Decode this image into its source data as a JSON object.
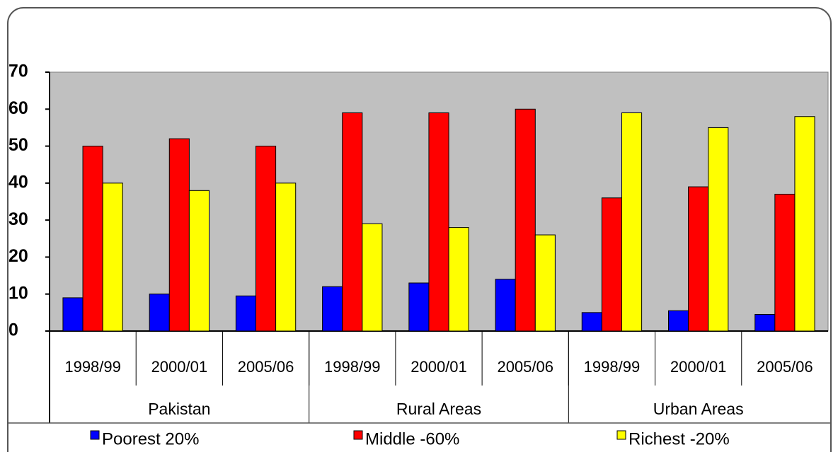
{
  "chart_data": {
    "type": "bar",
    "categories": [
      "1998/99",
      "2000/01",
      "2005/06",
      "1998/99",
      "2000/01",
      "2005/06",
      "1998/99",
      "2000/01",
      "2005/06"
    ],
    "groups": [
      "Pakistan",
      "Rural Areas",
      "Urban Areas"
    ],
    "series": [
      {
        "name": "Poorest 20%",
        "color": "#0000ff",
        "values": [
          9,
          10,
          9.5,
          12,
          13,
          14,
          5,
          5.5,
          4.5
        ]
      },
      {
        "name": "Middle -60%",
        "color": "#ff0000",
        "values": [
          50,
          52,
          50,
          59,
          59,
          60,
          36,
          39,
          37
        ]
      },
      {
        "name": "Richest -20%",
        "color": "#ffff00",
        "values": [
          40,
          38,
          40,
          29,
          28,
          26,
          59,
          55,
          58
        ]
      }
    ],
    "ylim": [
      0,
      70
    ],
    "yticks": [
      0,
      10,
      20,
      30,
      40,
      50,
      60,
      70
    ],
    "grid": false
  }
}
